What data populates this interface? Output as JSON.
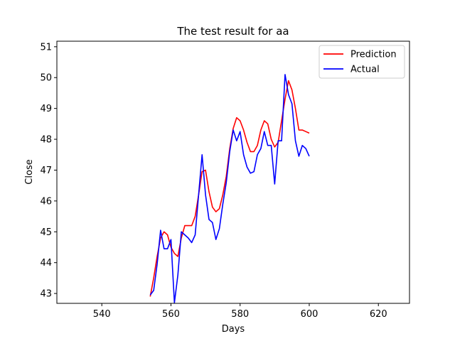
{
  "chart_data": {
    "type": "line",
    "title": "The test result for aa",
    "xlabel": "Days",
    "ylabel": "Close",
    "xlim": [
      527,
      629
    ],
    "ylim": [
      42.68,
      51.18
    ],
    "xticks": [
      540,
      560,
      580,
      600,
      620
    ],
    "yticks": [
      43,
      44,
      45,
      46,
      47,
      48,
      49,
      50,
      51
    ],
    "grid": false,
    "legend_position": "top-right",
    "series": [
      {
        "name": "Prediction",
        "color": "#ff0000",
        "x": [
          554,
          555,
          556,
          557,
          558,
          559,
          560,
          561,
          562,
          563,
          564,
          565,
          566,
          567,
          568,
          569,
          570,
          571,
          572,
          573,
          574,
          575,
          576,
          577,
          578,
          579,
          580,
          581,
          582,
          583,
          584,
          585,
          586,
          587,
          588,
          589,
          590,
          591,
          592,
          593,
          594,
          595,
          596,
          597,
          598,
          599,
          600
        ],
        "values": [
          42.9,
          43.5,
          44.2,
          44.8,
          45.0,
          44.9,
          44.5,
          44.3,
          44.2,
          44.8,
          45.2,
          45.2,
          45.2,
          45.5,
          46.2,
          46.95,
          47.0,
          46.3,
          45.8,
          45.65,
          45.75,
          46.2,
          46.8,
          47.7,
          48.35,
          48.7,
          48.6,
          48.3,
          47.9,
          47.6,
          47.6,
          47.8,
          48.3,
          48.6,
          48.5,
          48.0,
          47.75,
          47.9,
          48.6,
          49.3,
          49.9,
          49.6,
          49.0,
          48.3,
          48.3,
          48.25,
          48.2
        ]
      },
      {
        "name": "Actual",
        "color": "#0000ff",
        "x": [
          554,
          555,
          556,
          557,
          558,
          559,
          560,
          561,
          562,
          563,
          564,
          565,
          566,
          567,
          568,
          569,
          570,
          571,
          572,
          573,
          574,
          575,
          576,
          577,
          578,
          579,
          580,
          581,
          582,
          583,
          584,
          585,
          586,
          587,
          588,
          589,
          590,
          591,
          592,
          593,
          594,
          595,
          596,
          597,
          598,
          599,
          600
        ],
        "values": [
          42.95,
          43.1,
          43.95,
          45.05,
          44.45,
          44.45,
          44.75,
          42.7,
          43.6,
          45.0,
          44.9,
          44.8,
          44.65,
          44.9,
          46.2,
          47.5,
          46.2,
          45.4,
          45.3,
          44.75,
          45.1,
          45.9,
          46.6,
          47.6,
          48.3,
          47.95,
          48.25,
          47.5,
          47.1,
          46.9,
          46.95,
          47.5,
          47.7,
          48.25,
          47.8,
          47.8,
          46.55,
          47.95,
          47.95,
          50.1,
          49.45,
          49.15,
          47.95,
          47.45,
          47.8,
          47.7,
          47.45
        ]
      }
    ]
  }
}
